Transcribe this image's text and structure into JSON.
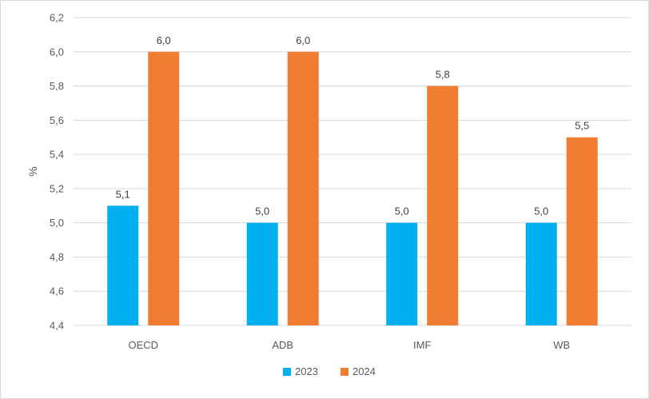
{
  "chart_data": {
    "type": "bar",
    "title": "",
    "xlabel": "",
    "ylabel": "%",
    "categories": [
      "OECD",
      "ADB",
      "IMF",
      "WB"
    ],
    "series": [
      {
        "name": "2023",
        "color": "#00b0f0",
        "values": [
          5.1,
          5.0,
          5.0,
          5.0
        ],
        "labels": [
          "5,1",
          "5,0",
          "5,0",
          "5,0"
        ]
      },
      {
        "name": "2024",
        "color": "#f07d32",
        "values": [
          6.0,
          6.0,
          5.8,
          5.5
        ],
        "labels": [
          "6,0",
          "6,0",
          "5,8",
          "5,5"
        ]
      }
    ],
    "ylim": [
      4.4,
      6.2
    ],
    "yticks": [
      4.4,
      4.6,
      4.8,
      5.0,
      5.2,
      5.4,
      5.6,
      5.8,
      6.0,
      6.2
    ],
    "ytick_labels": [
      "4,4",
      "4,6",
      "4,8",
      "5,0",
      "5,2",
      "5,4",
      "5,6",
      "5,8",
      "6,0",
      "6,2"
    ],
    "grid": true,
    "legend_position": "bottom-center",
    "gridline_color": "#d9d9d9"
  }
}
